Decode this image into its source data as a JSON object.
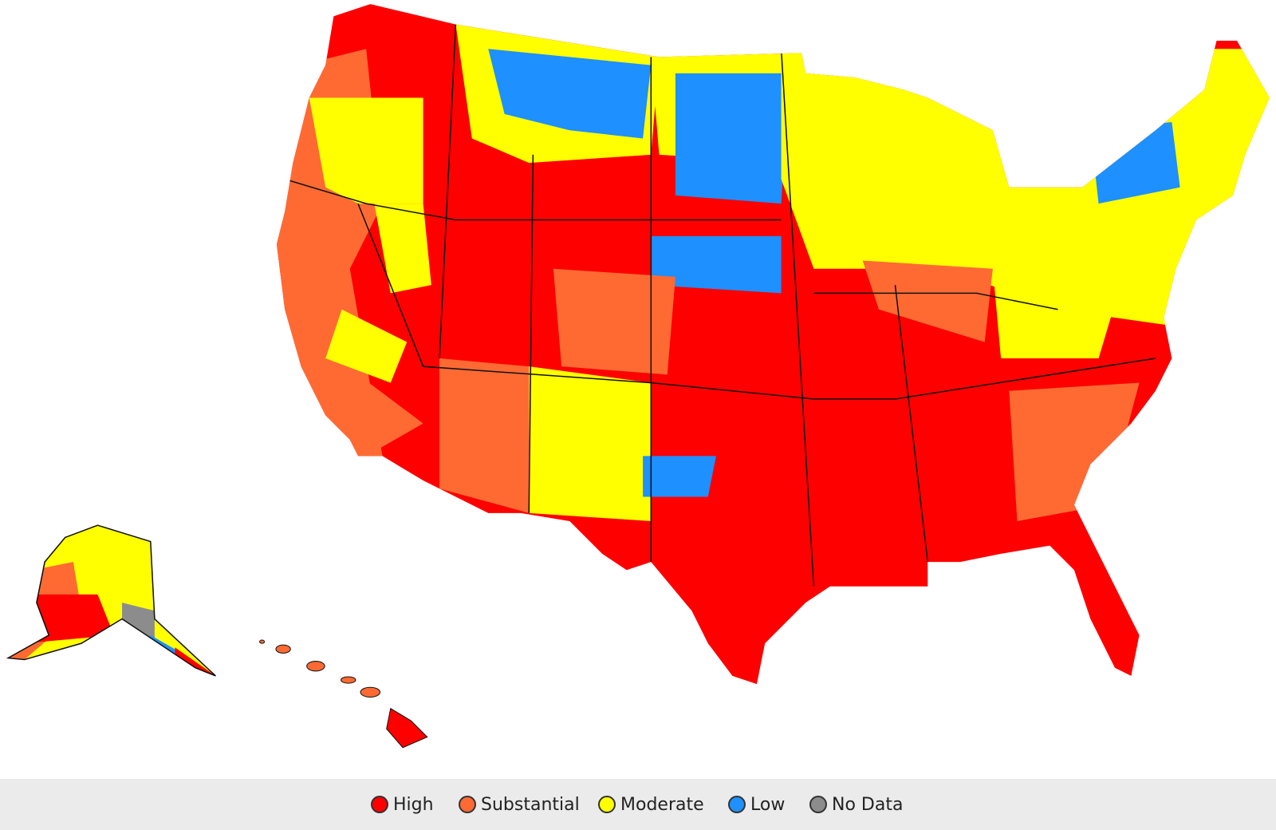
{
  "legend": {
    "items": [
      {
        "label": "High",
        "color": "#ff0000"
      },
      {
        "label": "Substantial",
        "color": "#ff6a33"
      },
      {
        "label": "Moderate",
        "color": "#ffff00"
      },
      {
        "label": "Low",
        "color": "#1e90ff"
      },
      {
        "label": "No Data",
        "color": "#8c8c8c"
      }
    ]
  }
}
